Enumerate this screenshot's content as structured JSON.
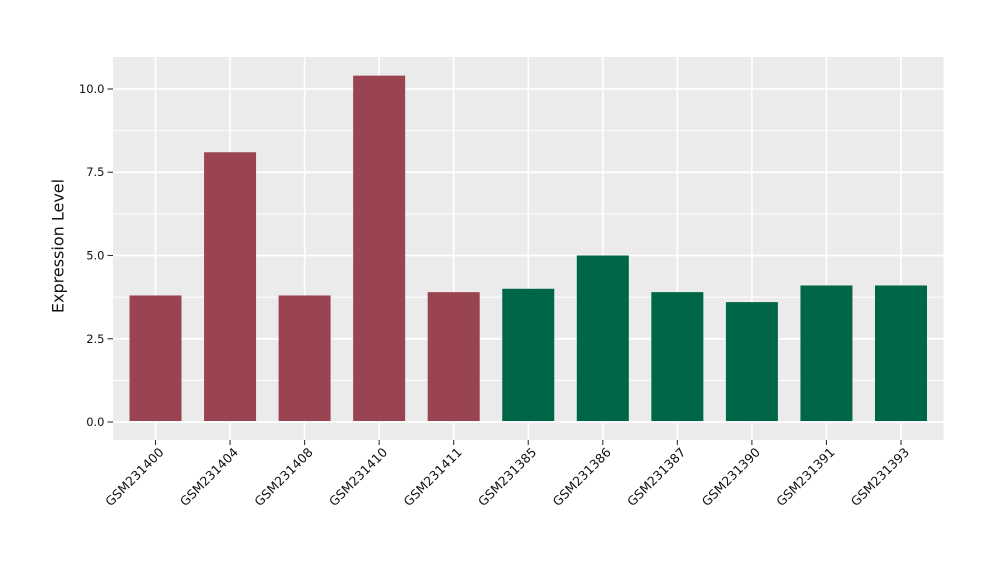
{
  "y_axis": {
    "title": "Expression Level"
  },
  "chart_data": {
    "type": "bar",
    "title": "",
    "xlabel": "",
    "ylabel": "Expression Level",
    "categories": [
      "GSM231400",
      "GSM231404",
      "GSM231408",
      "GSM231410",
      "GSM231411",
      "GSM231385",
      "GSM231386",
      "GSM231387",
      "GSM231390",
      "GSM231391",
      "GSM231393"
    ],
    "values": [
      3.8,
      8.1,
      3.8,
      10.4,
      3.9,
      4.0,
      5.0,
      3.9,
      3.6,
      4.1,
      4.1
    ],
    "bar_colors": [
      "#9A4451",
      "#9A4451",
      "#9A4451",
      "#9A4451",
      "#9A4451",
      "#006648",
      "#006648",
      "#006648",
      "#006648",
      "#006648",
      "#006648"
    ],
    "color_groups": [
      {
        "name": "maroon-group",
        "color": "#9A4451",
        "samples": [
          "GSM231400",
          "GSM231404",
          "GSM231408",
          "GSM231410",
          "GSM231411"
        ]
      },
      {
        "name": "green-group",
        "color": "#006648",
        "samples": [
          "GSM231385",
          "GSM231386",
          "GSM231387",
          "GSM231390",
          "GSM231391",
          "GSM231393"
        ]
      }
    ],
    "ylim": [
      -0.54,
      10.96
    ],
    "yticks": {
      "values": [
        0,
        2.5,
        5,
        7.5,
        10
      ],
      "labels": [
        "0.0",
        "2.5",
        "5.0",
        "7.5",
        "10.0"
      ]
    },
    "minor_yticks": [
      1.25,
      3.75,
      6.25,
      8.75
    ],
    "x_tick_rotation_deg": 45,
    "grid": "horizontal major+minor white, vertical major at category centers",
    "legend": "none",
    "style": {
      "panel_bg": "#EBEBEB",
      "grid_color": "#FFFFFF",
      "tick_color": "#333333",
      "text_color": "#111111",
      "figure_bg": "#FFFFFF"
    }
  }
}
